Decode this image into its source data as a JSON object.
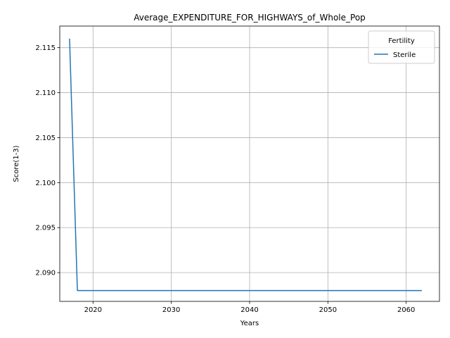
{
  "chart_data": {
    "type": "line",
    "title": "Average_EXPENDITURE_FOR_HIGHWAYS_of_Whole_Pop",
    "xlabel": "Years",
    "ylabel": "Score(1-3)",
    "xlim": [
      2015.75,
      2064.25
    ],
    "ylim": [
      2.0868,
      2.1174
    ],
    "x_ticks": [
      2020,
      2030,
      2040,
      2050,
      2060
    ],
    "y_ticks": [
      2.09,
      2.095,
      2.1,
      2.105,
      2.11,
      2.115
    ],
    "grid": true,
    "legend": {
      "title": "Fertility",
      "placement": "top-right"
    },
    "series": [
      {
        "name": "Sterile",
        "color": "#1f77b4",
        "x": [
          2017,
          2018,
          2019,
          2020,
          2021,
          2022,
          2023,
          2024,
          2025,
          2026,
          2027,
          2028,
          2029,
          2030,
          2031,
          2032,
          2033,
          2034,
          2035,
          2036,
          2037,
          2038,
          2039,
          2040,
          2041,
          2042,
          2043,
          2044,
          2045,
          2046,
          2047,
          2048,
          2049,
          2050,
          2051,
          2052,
          2053,
          2054,
          2055,
          2056,
          2057,
          2058,
          2059,
          2060,
          2061,
          2062
        ],
        "y": [
          2.116,
          2.088,
          2.088,
          2.088,
          2.088,
          2.088,
          2.088,
          2.088,
          2.088,
          2.088,
          2.088,
          2.088,
          2.088,
          2.088,
          2.088,
          2.088,
          2.088,
          2.088,
          2.088,
          2.088,
          2.088,
          2.088,
          2.088,
          2.088,
          2.088,
          2.088,
          2.088,
          2.088,
          2.088,
          2.088,
          2.088,
          2.088,
          2.088,
          2.088,
          2.088,
          2.088,
          2.088,
          2.088,
          2.088,
          2.088,
          2.088,
          2.088,
          2.088,
          2.088,
          2.088,
          2.088
        ]
      }
    ]
  }
}
